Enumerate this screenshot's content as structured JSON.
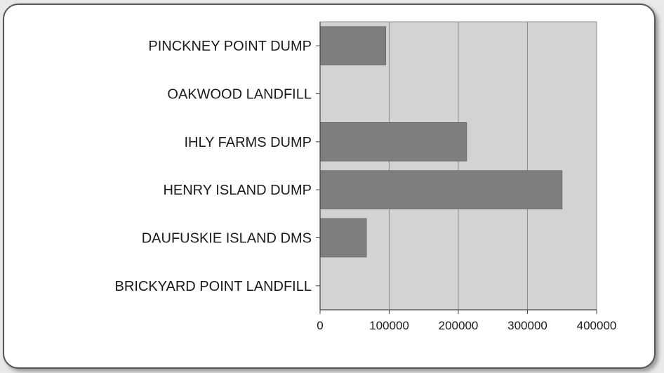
{
  "chart_data": {
    "type": "bar",
    "orientation": "horizontal",
    "categories": [
      "PINCKNEY POINT DUMP",
      "OAKWOOD LANDFILL",
      "IHLY FARMS DUMP",
      "HENRY ISLAND DUMP",
      "DAUFUSKIE ISLAND DMS",
      "BRICKYARD POINT LANDFILL"
    ],
    "values": [
      95000,
      0,
      212000,
      350000,
      67000,
      0
    ],
    "xlim": [
      0,
      400000
    ],
    "xticks": [
      0,
      100000,
      200000,
      300000,
      400000
    ],
    "xtick_labels": [
      "0",
      "100000",
      "200000",
      "300000",
      "400000"
    ],
    "grid": true,
    "colors": {
      "bar": "#7f7f7f",
      "bar_stroke": "#6e6e6e",
      "plot_bg": "#d3d3d3",
      "grid": "#8c8c8c",
      "axis": "#444444"
    }
  }
}
